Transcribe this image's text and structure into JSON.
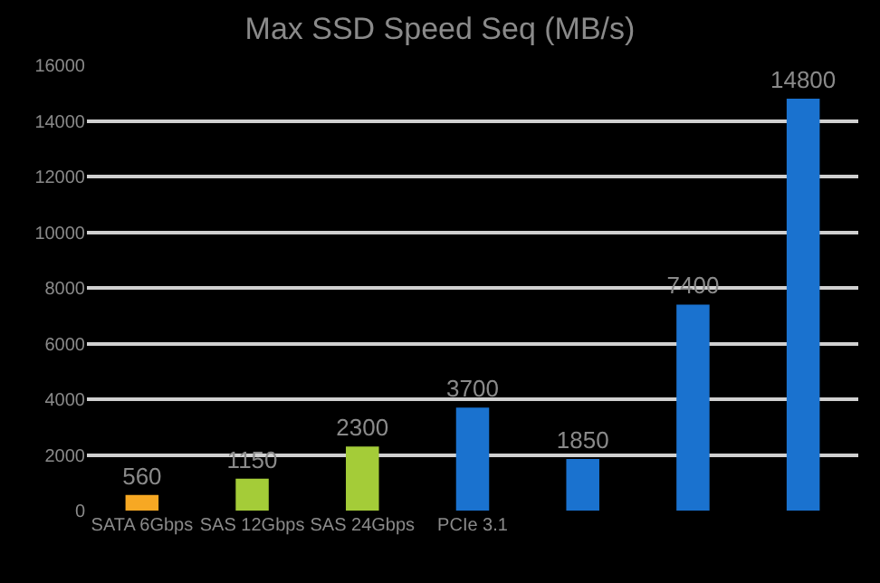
{
  "chart_data": {
    "type": "bar",
    "title": "Max SSD Speed Seq (MB/s)",
    "categories": [
      "SATA 6Gbps",
      "SAS 12Gbps",
      "SAS 24Gbps",
      "PCIe 3.1",
      null,
      null,
      null
    ],
    "values": [
      560,
      1150,
      2300,
      3700,
      1850,
      7400,
      14800
    ],
    "colors": [
      "#f7a823",
      "#a4cc38",
      "#a4cc38",
      "#1a72cf",
      "#1a72cf",
      "#1a72cf",
      "#1a72cf"
    ],
    "ylim": [
      0,
      16000
    ],
    "yticks": [
      0,
      2000,
      4000,
      6000,
      8000,
      10000,
      12000,
      14000,
      16000
    ],
    "grid": "y",
    "data_labels": true
  }
}
